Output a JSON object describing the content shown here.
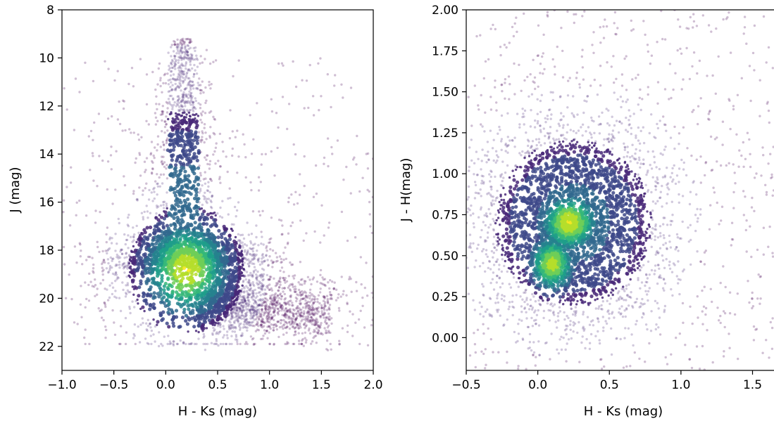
{
  "chart_data": [
    {
      "type": "scatter",
      "style": "density-colored point cloud (viridis colormap)",
      "title": "",
      "xlabel": "H - Ks (mag)",
      "ylabel": "J (mag)",
      "xlim": [
        -1.0,
        2.0
      ],
      "ylim": [
        23,
        8
      ],
      "y_inverted": true,
      "xticks": [
        -1.0,
        -0.5,
        0.0,
        0.5,
        1.0,
        1.5,
        2.0
      ],
      "xtick_labels": [
        "−1.0",
        "−0.5",
        "0.0",
        "0.5",
        "1.0",
        "1.5",
        "2.0"
      ],
      "yticks": [
        8,
        10,
        12,
        14,
        16,
        18,
        20,
        22
      ],
      "ytick_labels": [
        "8",
        "10",
        "12",
        "14",
        "16",
        "18",
        "20",
        "22"
      ],
      "grid": false,
      "legend": "none",
      "density_peaks": [
        {
          "x": 0.2,
          "y": 18.8
        }
      ],
      "features": [
        {
          "x": 0.15,
          "y": 12.5,
          "note": "narrow vertical plume up to J~9"
        },
        {
          "x": 0.9,
          "y": 20.5,
          "note": "broad tail toward red colors"
        }
      ]
    },
    {
      "type": "scatter",
      "style": "density-colored point cloud (viridis colormap)",
      "title": "",
      "xlabel": "H - Ks (mag)",
      "ylabel": "J - H(mag)",
      "xlim": [
        -0.5,
        1.65
      ],
      "ylim": [
        -0.2,
        2.0
      ],
      "y_inverted": false,
      "xticks": [
        -0.5,
        0.0,
        0.5,
        1.0,
        1.5
      ],
      "xtick_labels": [
        "−0.5",
        "0.0",
        "0.5",
        "1.0",
        "1.5"
      ],
      "yticks": [
        0.0,
        0.25,
        0.5,
        0.75,
        1.0,
        1.25,
        1.5,
        1.75,
        2.0
      ],
      "ytick_labels": [
        "0.00",
        "0.25",
        "0.50",
        "0.75",
        "1.00",
        "1.25",
        "1.50",
        "1.75",
        "2.00"
      ],
      "grid": false,
      "legend": "none",
      "density_peaks": [
        {
          "x": 0.22,
          "y": 0.7
        },
        {
          "x": 0.1,
          "y": 0.45
        }
      ]
    }
  ],
  "colors": {
    "viridis": [
      "#440154",
      "#482878",
      "#3e4989",
      "#31688e",
      "#26828e",
      "#1f9e89",
      "#35b779",
      "#6ece58",
      "#b5de2b",
      "#fde725"
    ],
    "axes": "#000000",
    "background": "#ffffff"
  }
}
